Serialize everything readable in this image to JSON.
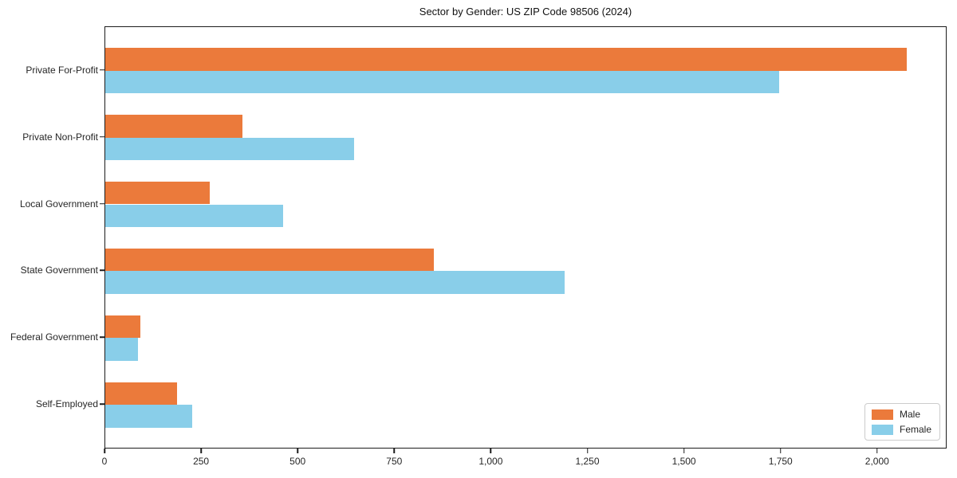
{
  "chart_data": {
    "type": "bar",
    "orientation": "horizontal",
    "title": "Sector by Gender: US ZIP Code 98506 (2024)",
    "categories": [
      "Private For-Profit",
      "Private Non-Profit",
      "Local Government",
      "State Government",
      "Federal Government",
      "Self-Employed"
    ],
    "series": [
      {
        "name": "Male",
        "color": "#EB7A3B",
        "values": [
          2075,
          355,
          270,
          850,
          90,
          185
        ]
      },
      {
        "name": "Female",
        "color": "#89CEE9",
        "values": [
          1745,
          645,
          460,
          1190,
          85,
          225
        ]
      }
    ],
    "xlabel": "",
    "ylabel": "",
    "xlim": [
      0,
      2180
    ],
    "x_ticks": [
      0,
      250,
      500,
      750,
      1000,
      1250,
      1500,
      1750,
      2000
    ],
    "x_tick_labels": [
      "0",
      "250",
      "500",
      "750",
      "1,000",
      "1,250",
      "1,500",
      "1,750",
      "2,000"
    ],
    "grid": false,
    "legend_position": "lower right"
  }
}
